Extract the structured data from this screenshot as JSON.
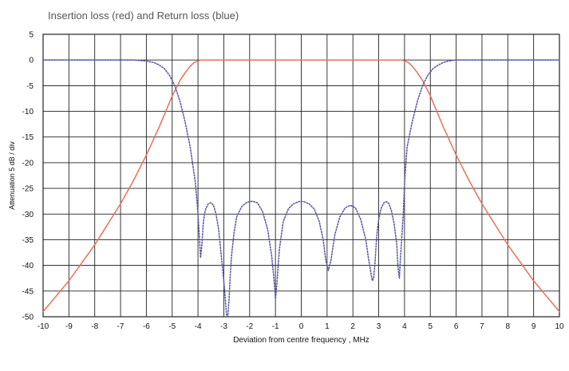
{
  "chart_data": {
    "type": "line",
    "title": "Insertion loss (red) and Return loss (blue)",
    "xlabel": "Deviation from centre frequency ,  MHz",
    "ylabel": "Attenuation  5 dB / div",
    "xlim": [
      -10,
      10
    ],
    "ylim": [
      -50,
      5
    ],
    "x_ticks": [
      -10,
      -9,
      -8,
      -7,
      -6,
      -5,
      -4,
      -3,
      -2,
      -1,
      0,
      1,
      2,
      3,
      4,
      5,
      6,
      7,
      8,
      9,
      10
    ],
    "y_ticks": [
      5,
      0,
      -5,
      -10,
      -15,
      -20,
      -25,
      -30,
      -35,
      -40,
      -45,
      -50
    ],
    "grid": true,
    "series": [
      {
        "name": "Insertion loss",
        "color": "#e8705a",
        "style": "solid",
        "x": [
          -10,
          -9.5,
          -9,
          -8.5,
          -8,
          -7.5,
          -7,
          -6.5,
          -6,
          -5.5,
          -5,
          -4.7,
          -4.5,
          -4.3,
          -4.15,
          -4,
          -3.9,
          0,
          3.9,
          4,
          4.15,
          4.3,
          4.5,
          4.7,
          5,
          5.5,
          6,
          6.5,
          7,
          7.5,
          8,
          8.5,
          9,
          9.5,
          10
        ],
        "y": [
          -49,
          -46,
          -43,
          -39.5,
          -36,
          -32,
          -28,
          -23.5,
          -18.5,
          -13,
          -7,
          -4,
          -2.5,
          -1.2,
          -0.5,
          -0.2,
          0,
          0,
          0,
          -0.2,
          -0.5,
          -1.2,
          -2.5,
          -4,
          -7,
          -13,
          -18.5,
          -23.5,
          -28,
          -32,
          -36,
          -39.5,
          -43,
          -46,
          -49
        ]
      },
      {
        "name": "Return loss",
        "color": "#5a5aa8",
        "style": "dotted",
        "x": [
          -10,
          -7,
          -6.5,
          -6,
          -5.7,
          -5.5,
          -5.3,
          -5.1,
          -4.9,
          -4.7,
          -4.5,
          -4.3,
          -4.1,
          -4.0,
          -3.95,
          -3.9,
          -3.85,
          -3.8,
          -3.75,
          -3.7,
          -3.6,
          -3.5,
          -3.4,
          -3.3,
          -3.2,
          -3.1,
          -3.0,
          -2.95,
          -2.9,
          -2.85,
          -2.8,
          -2.75,
          -2.7,
          -2.6,
          -2.5,
          -2.3,
          -2.1,
          -1.9,
          -1.7,
          -1.5,
          -1.3,
          -1.15,
          -1.05,
          -1.0,
          -0.95,
          -0.85,
          -0.7,
          -0.5,
          -0.3,
          -0.1,
          0,
          0.1,
          0.3,
          0.5,
          0.7,
          0.85,
          0.95,
          1.05,
          1.15,
          1.3,
          1.5,
          1.7,
          1.9,
          2.1,
          2.3,
          2.5,
          2.6,
          2.7,
          2.75,
          2.8,
          2.85,
          2.9,
          2.95,
          3.0,
          3.1,
          3.2,
          3.3,
          3.4,
          3.5,
          3.6,
          3.7,
          3.75,
          3.8,
          3.85,
          3.9,
          3.95,
          4.0,
          4.1,
          4.3,
          4.5,
          4.7,
          4.9,
          5.1,
          5.3,
          5.5,
          5.7,
          6,
          6.5,
          7,
          10
        ],
        "y": [
          0,
          0,
          0,
          -0.2,
          -0.5,
          -1,
          -1.7,
          -3,
          -5,
          -8,
          -12,
          -17,
          -24,
          -30,
          -34,
          -38.5,
          -36,
          -32,
          -30,
          -29,
          -28,
          -27.8,
          -28.3,
          -30,
          -33,
          -38,
          -43,
          -46,
          -49.5,
          -50,
          -47,
          -42,
          -38,
          -33.5,
          -30.5,
          -28.5,
          -27.7,
          -27.5,
          -27.8,
          -29.5,
          -33,
          -38,
          -43,
          -46.5,
          -44,
          -37,
          -31.5,
          -29,
          -28,
          -27.6,
          -27.5,
          -27.6,
          -28,
          -29,
          -31.5,
          -35,
          -39,
          -41,
          -39,
          -34,
          -30.5,
          -28.8,
          -28.3,
          -28.8,
          -31,
          -35,
          -38.5,
          -41.5,
          -43,
          -42.5,
          -40,
          -36,
          -33,
          -31,
          -28.8,
          -27.8,
          -27.6,
          -28,
          -29.5,
          -32,
          -36,
          -40.5,
          -42.5,
          -38,
          -34,
          -30,
          -24,
          -17,
          -12,
          -8,
          -5,
          -3,
          -1.7,
          -1,
          -0.5,
          -0.2,
          0,
          0,
          0,
          0
        ]
      }
    ]
  }
}
